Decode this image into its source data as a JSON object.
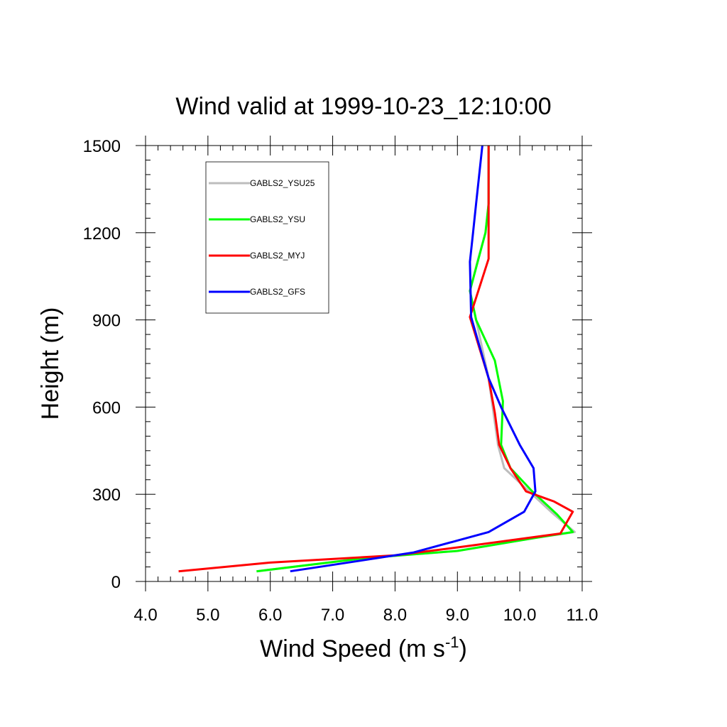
{
  "chart_data": {
    "type": "line",
    "title": "Wind valid at 1999-10-23_12:10:00",
    "xlabel": "Wind Speed (m s",
    "xlabel_sup": "-1",
    "xlabel_end": ")",
    "ylabel": "Height (m)",
    "xlim": [
      4.0,
      11.0
    ],
    "ylim": [
      0,
      1500
    ],
    "xticks": [
      "4.0",
      "5.0",
      "6.0",
      "7.0",
      "8.0",
      "9.0",
      "10.0",
      "11.0"
    ],
    "yticks": [
      "0",
      "300",
      "600",
      "900",
      "1200",
      "1500"
    ],
    "grid": false,
    "legend_position": "upper-left",
    "series": [
      {
        "name": "GABLS2_YSU25",
        "color": "#bdbdbd",
        "x": [
          5.78,
          7.5,
          9.0,
          10.25,
          10.88,
          10.5,
          10.1,
          9.75,
          9.65,
          9.5,
          9.3,
          9.2,
          9.32,
          9.45,
          9.5,
          9.5
        ],
        "y": [
          35,
          80,
          105,
          150,
          170,
          240,
          320,
          390,
          470,
          700,
          900,
          1000,
          1100,
          1200,
          1300,
          1500
        ]
      },
      {
        "name": "GABLS2_YSU",
        "color": "#00ff00",
        "x": [
          5.78,
          7.5,
          9.0,
          10.25,
          10.85,
          10.6,
          10.2,
          9.85,
          9.7,
          9.73,
          9.6,
          9.3,
          9.2,
          9.45,
          9.5,
          9.5
        ],
        "y": [
          35,
          80,
          105,
          150,
          170,
          230,
          310,
          390,
          470,
          620,
          760,
          900,
          1000,
          1200,
          1300,
          1500
        ]
      },
      {
        "name": "GABLS2_MYJ",
        "color": "#ff0000",
        "x": [
          4.53,
          6.0,
          8.0,
          9.1,
          10.65,
          10.85,
          10.55,
          10.1,
          9.85,
          9.67,
          9.6,
          9.5,
          9.2,
          9.5,
          9.5,
          9.5
        ],
        "y": [
          35,
          65,
          90,
          120,
          165,
          240,
          275,
          310,
          390,
          470,
          580,
          700,
          910,
          1110,
          1200,
          1500
        ]
      },
      {
        "name": "GABLS2_GFS",
        "color": "#0000ff",
        "x": [
          6.32,
          7.4,
          8.3,
          9.5,
          10.07,
          10.25,
          10.22,
          10.0,
          9.7,
          9.5,
          9.22,
          9.2,
          9.25,
          9.3,
          9.4
        ],
        "y": [
          35,
          70,
          100,
          170,
          240,
          310,
          390,
          470,
          600,
          700,
          910,
          1100,
          1200,
          1300,
          1500
        ]
      }
    ]
  }
}
